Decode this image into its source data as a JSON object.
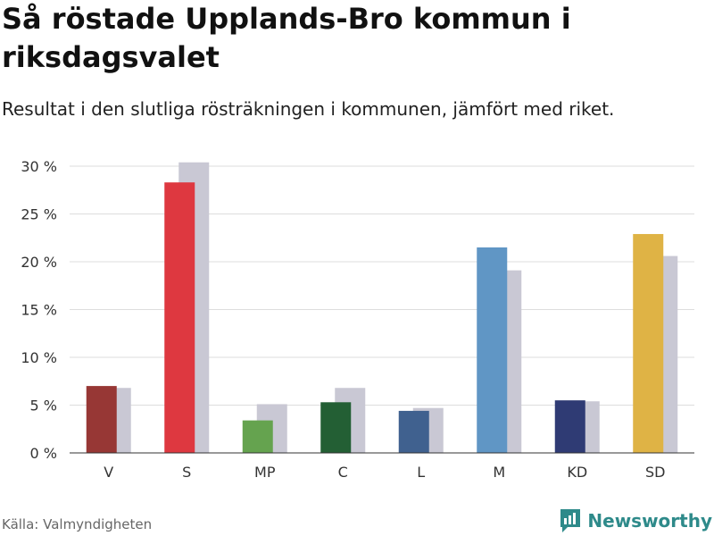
{
  "chart_data": {
    "type": "bar",
    "title": "Så röstade Upplands-Bro kommun i riksdagsvalet",
    "subtitle": "Resultat i den slutliga rösträkningen i kommunen, jämfört med riket.",
    "categories": [
      "V",
      "S",
      "MP",
      "C",
      "L",
      "M",
      "KD",
      "SD"
    ],
    "series": [
      {
        "values": [
          7.0,
          28.3,
          3.4,
          5.3,
          4.4,
          21.5,
          5.5,
          22.9
        ],
        "colors": [
          "#973735",
          "#de3840",
          "#65a34f",
          "#235f34",
          "#40618f",
          "#6096c5",
          "#2f3b74",
          "#dfb345"
        ]
      },
      {
        "values": [
          6.8,
          30.4,
          5.1,
          6.8,
          4.7,
          19.1,
          5.4,
          20.6
        ],
        "color": "#c9c8d4"
      }
    ],
    "y_ticks": [
      "0 %",
      "5 %",
      "10 %",
      "15 %",
      "20 %",
      "25 %",
      "30 %"
    ],
    "ylim": [
      0,
      30
    ],
    "grid": true,
    "legend": "none"
  },
  "source": "Källa: Valmyndigheten",
  "brand": {
    "name": "Newsworthy",
    "icon": "newsworthy-logo-icon",
    "color": "#2e8a8a"
  }
}
